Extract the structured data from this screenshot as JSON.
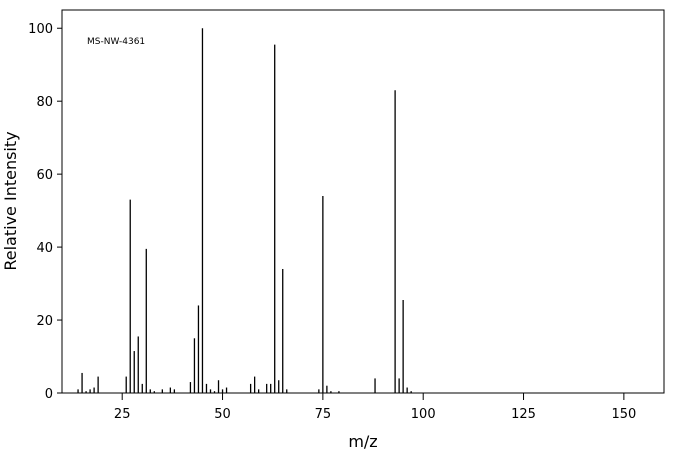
{
  "chart_data": {
    "type": "bar",
    "annotation": "MS-NW-4361",
    "x_label": "m/z",
    "y_label": "Relative Intensity",
    "x": [
      14,
      15,
      16,
      17,
      18,
      19,
      26,
      27,
      28,
      29,
      30,
      31,
      32,
      33,
      35,
      37,
      38,
      42,
      43,
      44,
      45,
      46,
      47,
      48,
      49,
      50,
      51,
      57,
      58,
      59,
      61,
      62,
      63,
      64,
      65,
      66,
      74,
      75,
      76,
      77,
      79,
      88,
      93,
      94,
      95,
      96,
      97
    ],
    "values": [
      1,
      5.5,
      0.5,
      1,
      1.5,
      4.5,
      4.5,
      53,
      11.5,
      15.5,
      2.5,
      39.5,
      1,
      0.5,
      1,
      1.5,
      1,
      3,
      15,
      24,
      100,
      2.5,
      1,
      0.5,
      3.5,
      1,
      1.5,
      2.5,
      4.5,
      1,
      2.5,
      2.5,
      95.5,
      3.5,
      34,
      1,
      1,
      54,
      2,
      0.5,
      0.5,
      4,
      83,
      4,
      25.5,
      1.5,
      0.5
    ],
    "color": "#000000",
    "xlim": [
      10,
      160
    ],
    "xticks": [
      25,
      50,
      75,
      100,
      125,
      150
    ],
    "ylim": [
      0,
      105
    ],
    "yticks": [
      0,
      20,
      40,
      60,
      80,
      100
    ]
  }
}
